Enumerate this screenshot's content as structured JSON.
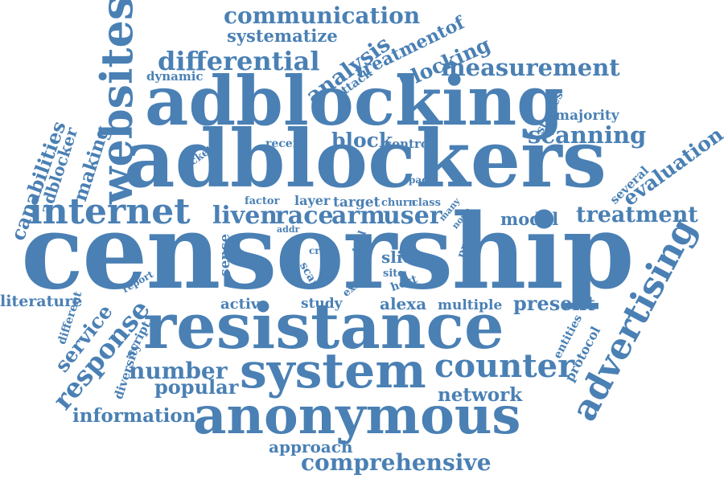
{
  "cloud": {
    "color": "#4a80b4",
    "words": [
      "communication",
      "systematize",
      "differential",
      "analysis",
      "attack",
      "treatmentof",
      "blocking",
      "measurement",
      "dynamic",
      "adblocking",
      "websites",
      "studies",
      "majority",
      "scanning",
      "evaluation",
      "several",
      "packet",
      "recent",
      "block",
      "control",
      "capabilities",
      "adblocker",
      "making",
      "adblockers",
      "page",
      "internet",
      "factor",
      "layer",
      "target",
      "churn",
      "class",
      "many",
      "node",
      "liven",
      "race",
      "arm",
      "user",
      "model",
      "treatment",
      "addr",
      "censorship",
      "report",
      "sense",
      "crs",
      "scan",
      "tool",
      "slice",
      "site",
      "host",
      "exit",
      "probe",
      "active",
      "study",
      "alexa",
      "multiple",
      "present",
      "literature",
      "service",
      "response",
      "different",
      "diversity",
      "script",
      "resistance",
      "entities",
      "protocol",
      "advertising",
      "number",
      "system",
      "counter",
      "popular",
      "network",
      "information",
      "anonymous",
      "approach",
      "comprehensive"
    ]
  }
}
